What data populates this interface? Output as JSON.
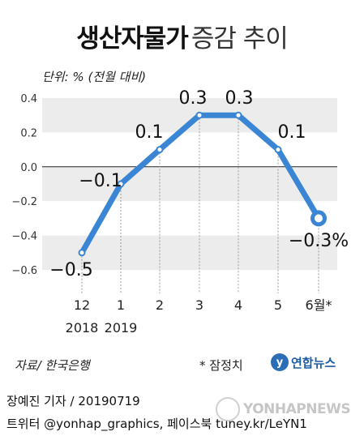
{
  "header": {
    "title_bold": "생산자물가",
    "title_light": "증감 추이"
  },
  "unit_label": "단위: % (전월 대비)",
  "source": "자료/ 한국은행",
  "note": "* 잠정치",
  "logo": {
    "mark": "y",
    "text": "연합뉴스"
  },
  "credit": "장예진 기자 / 20190719",
  "social": "트위터 @yonhap_graphics, 페이스북 tuney.kr/LeYN1",
  "watermark": "YONHAPNEWS",
  "colors": {
    "line": "#3a86d4",
    "band": "#ececec",
    "text": "#1a1a1a"
  },
  "chart_data": {
    "type": "line",
    "categories": [
      "12\n2018",
      "1\n2019",
      "2",
      "3",
      "4",
      "5",
      "6월*"
    ],
    "x_labels_top": [
      "12",
      "1",
      "2",
      "3",
      "4",
      "5",
      "6월*"
    ],
    "x_labels_bottom": [
      "2018",
      "2019",
      "",
      "",
      "",
      "",
      ""
    ],
    "values": [
      -0.5,
      -0.1,
      0.1,
      0.3,
      0.3,
      0.1,
      -0.3
    ],
    "data_labels": [
      "−0.5",
      "−0.1",
      "0.1",
      "0.3",
      "0.3",
      "0.1",
      "−0.3%"
    ],
    "yticks": [
      "0.4",
      "0.2",
      "0.0",
      "−0.2",
      "−0.4",
      "−0.6"
    ],
    "ytick_values": [
      0.4,
      0.2,
      0.0,
      -0.2,
      -0.4,
      -0.6
    ],
    "ylim": [
      -0.6,
      0.4
    ],
    "grid": "alternating bands",
    "last_point_marker": "ring"
  }
}
